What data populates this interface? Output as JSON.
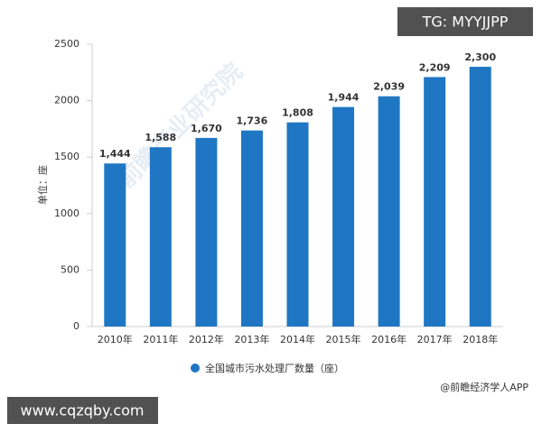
{
  "chart_data": {
    "type": "bar",
    "categories": [
      "2010年",
      "2011年",
      "2012年",
      "2013年",
      "2014年",
      "2015年",
      "2016年",
      "2017年",
      "2018年"
    ],
    "series": [
      {
        "name": "全国城市污水处理厂数量（座）",
        "color": "#1f77c4",
        "values": [
          1444,
          1588,
          1670,
          1736,
          1808,
          1944,
          2039,
          2209,
          2300
        ],
        "value_labels": [
          "1,444",
          "1,588",
          "1,670",
          "1,736",
          "1,808",
          "1,944",
          "2,039",
          "2,209",
          "2,300"
        ]
      }
    ],
    "ylabel": "单位：座",
    "ylim": [
      0,
      2500
    ],
    "yticks": [
      0,
      500,
      1000,
      1500,
      2000,
      2500
    ],
    "source": "@前瞻经济学人APP",
    "watermark": "前瞻产业研究院"
  },
  "overlays": {
    "top_right": "TG: MYYJJPP",
    "bottom_left": "www.cqzqby.com"
  }
}
